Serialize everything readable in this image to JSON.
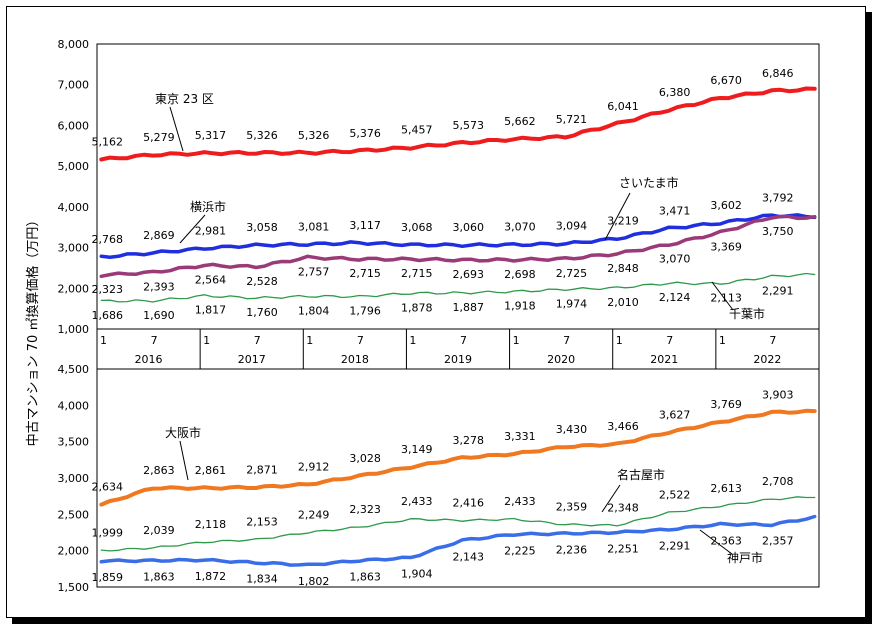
{
  "ylabel": "中古マンション 70 ㎡換算価格（万円）",
  "x_axis": {
    "month_ticks": [
      "1",
      "7",
      "1",
      "7",
      "1",
      "7",
      "1",
      "7",
      "1",
      "7",
      "1",
      "7",
      "1",
      "7"
    ],
    "years": [
      "2016",
      "2017",
      "2018",
      "2019",
      "2020",
      "2021",
      "2022"
    ]
  },
  "chart_data": [
    {
      "type": "line",
      "yticks": [
        "8,000",
        "7,000",
        "6,000",
        "5,000",
        "4,000",
        "3,000",
        "2,000",
        "1,000"
      ],
      "ylim": [
        1000,
        8000
      ],
      "x_start": "2016-01",
      "series": [
        {
          "name": "東京 23 区",
          "color": "#ee1c1c",
          "width": 4,
          "points": [
            5162,
            5279,
            5317,
            5326,
            5326,
            5376,
            5457,
            5573,
            5662,
            5721,
            6041,
            6380,
            6670,
            6846
          ],
          "labels": [
            "5,162",
            "5,279",
            "5,317",
            "5,326",
            "5,326",
            "5,376",
            "5,457",
            "5,573",
            "5,662",
            "5,721",
            "6,041",
            "6,380",
            "6,670",
            "6,846"
          ],
          "values": [
            5162,
            5279,
            5317,
            5326,
            5326,
            5376,
            5457,
            5573,
            5662,
            5721,
            6041,
            6380,
            6670,
            6846
          ],
          "end": 6900
        },
        {
          "name": "横浜市",
          "color": "#1f2fe0",
          "width": 3.5,
          "labels": [
            "2,768",
            "2,869",
            "2,981",
            "3,058",
            "3,081",
            "3,117",
            "3,068",
            "3,060",
            "3,070",
            "3,094",
            "3,219",
            "3,471",
            "3,602",
            "3,792"
          ],
          "values": [
            2768,
            2869,
            2981,
            3058,
            3081,
            3117,
            3068,
            3060,
            3070,
            3094,
            3219,
            3471,
            3602,
            3792
          ],
          "end": 3760
        },
        {
          "name": "さいたま市",
          "color": "#9a3a78",
          "width": 3.5,
          "labels": [
            "2,323",
            "2,393",
            "2,564",
            "2,528",
            "2,757",
            "2,715",
            "2,715",
            "2,693",
            "2,698",
            "2,725",
            "2,848",
            "3,070",
            "3,369",
            "3,750"
          ],
          "values": [
            2323,
            2393,
            2564,
            2528,
            2757,
            2715,
            2715,
            2693,
            2698,
            2725,
            2848,
            3070,
            3369,
            3750
          ],
          "end": 3730
        },
        {
          "name": "千葉市",
          "color": "#2e9a4a",
          "width": 1.3,
          "labels": [
            "1,686",
            "1,690",
            "1,817",
            "1,760",
            "1,804",
            "1,796",
            "1,878",
            "1,887",
            "1,918",
            "1,974",
            "2,010",
            "2,124",
            "2,113",
            "2,291"
          ],
          "values": [
            1686,
            1690,
            1817,
            1760,
            1804,
            1796,
            1878,
            1887,
            1918,
            1974,
            2010,
            2124,
            2113,
            2291
          ],
          "end": 2360
        }
      ]
    },
    {
      "type": "line",
      "yticks": [
        "4,500",
        "4,000",
        "3,500",
        "3,000",
        "2,500",
        "2,000",
        "1,500"
      ],
      "ylim": [
        1500,
        4500
      ],
      "x_start": "2016-01",
      "series": [
        {
          "name": "大阪市",
          "color": "#f07820",
          "width": 4,
          "labels": [
            "2,634",
            "2,863",
            "2,861",
            "2,871",
            "2,912",
            "3,028",
            "3,149",
            "3,278",
            "3,331",
            "3,430",
            "3,466",
            "3,627",
            "3,769",
            "3,903"
          ],
          "values": [
            2634,
            2863,
            2861,
            2871,
            2912,
            3028,
            3149,
            3278,
            3331,
            3430,
            3466,
            3627,
            3769,
            3903
          ],
          "end": 3920
        },
        {
          "name": "名古屋市",
          "color": "#2e9a4a",
          "width": 1.3,
          "labels": [
            "1,999",
            "2,039",
            "2,118",
            "2,153",
            "2,249",
            "2,323",
            "2,433",
            "2,416",
            "2,433",
            "2,359",
            "2,348",
            "2,522",
            "2,613",
            "2,708"
          ],
          "values": [
            1999,
            2039,
            2118,
            2153,
            2249,
            2323,
            2433,
            2416,
            2433,
            2359,
            2348,
            2522,
            2613,
            2708
          ],
          "end": 2750
        },
        {
          "name": "神戸市",
          "color": "#3a6ee8",
          "width": 3.5,
          "labels": [
            "1,859",
            "1,863",
            "1,872",
            "1,834",
            "1,802",
            "1,863",
            "1,904",
            "2,143",
            "2,225",
            "2,236",
            "2,251",
            "2,291",
            "2,363",
            "2,357"
          ],
          "values": [
            1859,
            1863,
            1872,
            1834,
            1802,
            1863,
            1904,
            2143,
            2225,
            2236,
            2251,
            2291,
            2363,
            2357
          ],
          "end": 2480
        }
      ]
    }
  ]
}
